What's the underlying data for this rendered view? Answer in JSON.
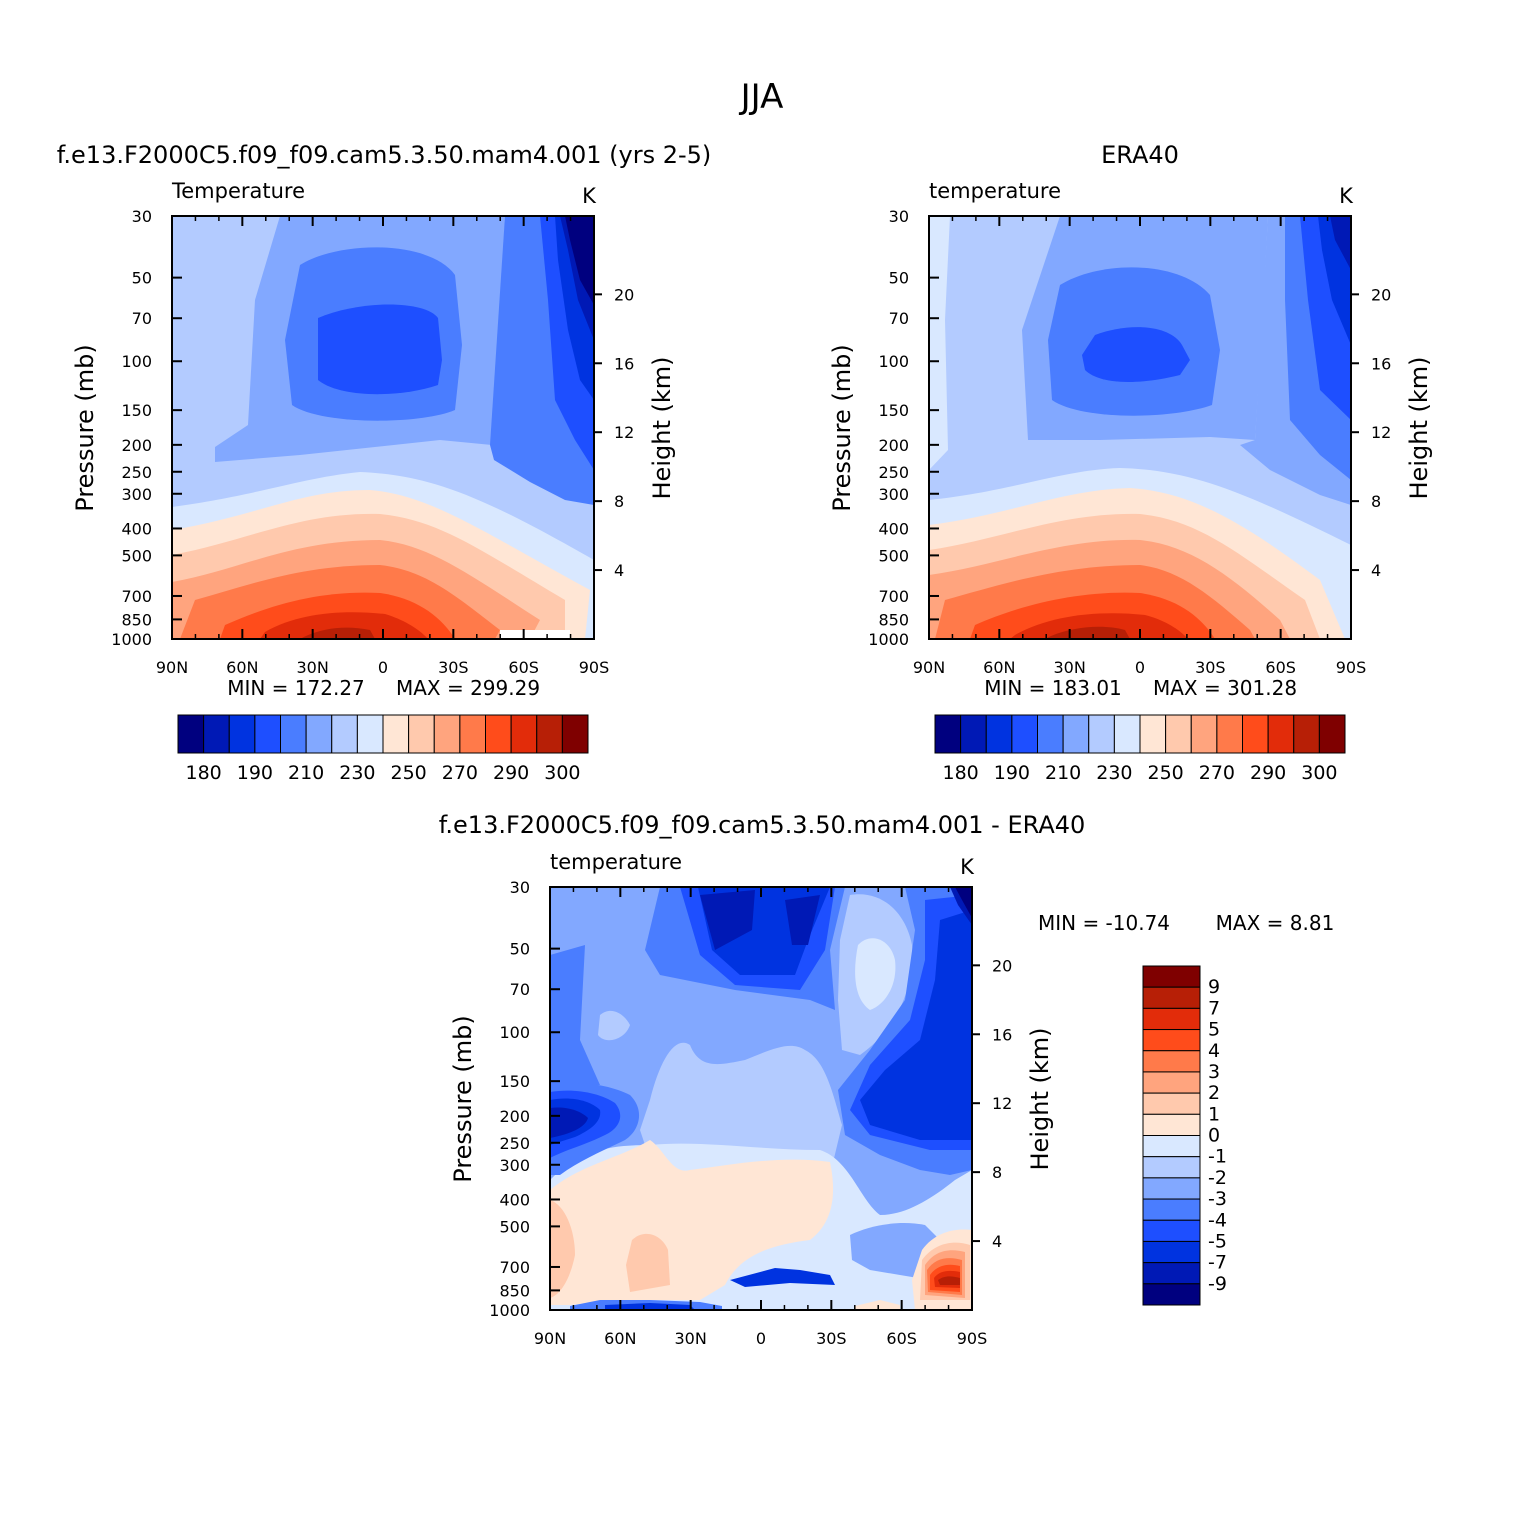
{
  "figure": {
    "title": "JJA"
  },
  "chart_data": [
    {
      "type": "heatmap",
      "id": "model",
      "title": "f.e13.F2000C5.f09_f09.cam5.3.50.mam4.001 (yrs 2-5)",
      "variable_label": "Temperature",
      "units": "K",
      "ylabel": "Pressure (mb)",
      "ylabel_right": "Height (km)",
      "x_ticks": [
        "90N",
        "60N",
        "30N",
        "0",
        "30S",
        "60S",
        "90S"
      ],
      "y_ticks": [
        "30",
        "50",
        "70",
        "100",
        "150",
        "200",
        "250",
        "300",
        "400",
        "500",
        "700",
        "850",
        "1000"
      ],
      "height_ticks": [
        "20",
        "16",
        "12",
        "8",
        "4"
      ],
      "min_label": "MIN = 172.27",
      "max_label": "MAX = 299.29",
      "colorbar_ticks": [
        "180",
        "190",
        "210",
        "230",
        "250",
        "270",
        "290",
        "300"
      ]
    },
    {
      "type": "heatmap",
      "id": "obs",
      "title": "ERA40",
      "variable_label": "temperature",
      "units": "K",
      "ylabel": "Pressure (mb)",
      "ylabel_right": "Height (km)",
      "x_ticks": [
        "90N",
        "60N",
        "30N",
        "0",
        "30S",
        "60S",
        "90S"
      ],
      "y_ticks": [
        "30",
        "50",
        "70",
        "100",
        "150",
        "200",
        "250",
        "300",
        "400",
        "500",
        "700",
        "850",
        "1000"
      ],
      "height_ticks": [
        "20",
        "16",
        "12",
        "8",
        "4"
      ],
      "min_label": "MIN = 183.01",
      "max_label": "MAX = 301.28",
      "colorbar_ticks": [
        "180",
        "190",
        "210",
        "230",
        "250",
        "270",
        "290",
        "300"
      ]
    },
    {
      "type": "heatmap",
      "id": "diff",
      "title": "f.e13.F2000C5.f09_f09.cam5.3.50.mam4.001 - ERA40",
      "variable_label": "temperature",
      "units": "K",
      "ylabel": "Pressure (mb)",
      "ylabel_right": "Height (km)",
      "x_ticks": [
        "90N",
        "60N",
        "30N",
        "0",
        "30S",
        "60S",
        "90S"
      ],
      "y_ticks": [
        "30",
        "50",
        "70",
        "100",
        "150",
        "200",
        "250",
        "300",
        "400",
        "500",
        "700",
        "850",
        "1000"
      ],
      "height_ticks": [
        "20",
        "16",
        "12",
        "8",
        "4"
      ],
      "min_label": "MIN = -10.74",
      "max_label": "MAX = 8.81",
      "colorbar_ticks": [
        "9",
        "7",
        "5",
        "4",
        "3",
        "2",
        "1",
        "0",
        "-1",
        "-2",
        "-3",
        "-4",
        "-5",
        "-7",
        "-9"
      ]
    }
  ],
  "palette": [
    "#00007f",
    "#0019b5",
    "#0033e0",
    "#1e4fff",
    "#4a7dff",
    "#82a8ff",
    "#b3cbff",
    "#d9e8ff",
    "#ffe6d5",
    "#ffc9ad",
    "#ffa47e",
    "#ff7a4a",
    "#ff4c1b",
    "#e22c0a",
    "#b71f06",
    "#7f0000"
  ]
}
